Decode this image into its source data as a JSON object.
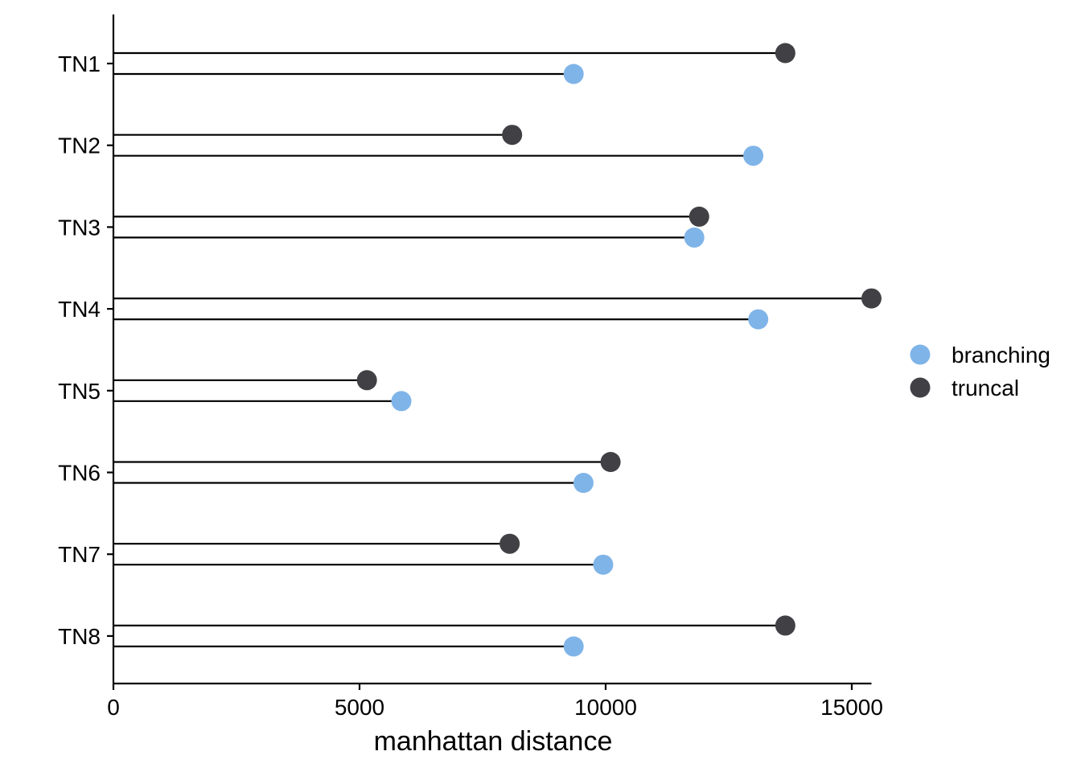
{
  "chart_data": {
    "type": "lollipop",
    "xlabel": "manhattan distance",
    "ylabel": "",
    "xlim": [
      0,
      15400
    ],
    "x_ticks": [
      0,
      5000,
      10000,
      15000
    ],
    "x_tick_labels": [
      "0",
      "5000",
      "10000",
      "15000"
    ],
    "categories": [
      "TN1",
      "TN2",
      "TN3",
      "TN4",
      "TN5",
      "TN6",
      "TN7",
      "TN8"
    ],
    "series": [
      {
        "name": "truncal",
        "color": "#404045",
        "values": [
          13650,
          8100,
          11900,
          15400,
          5150,
          10100,
          8050,
          13650
        ]
      },
      {
        "name": "branching",
        "color": "#7fb4e8",
        "values": [
          9350,
          13000,
          11800,
          13100,
          5850,
          9550,
          9950,
          9350
        ]
      }
    ],
    "legend": {
      "position": "right",
      "entries": [
        {
          "label": "branching",
          "color": "#7fb4e8"
        },
        {
          "label": "truncal",
          "color": "#404045"
        }
      ]
    },
    "grid": false
  }
}
